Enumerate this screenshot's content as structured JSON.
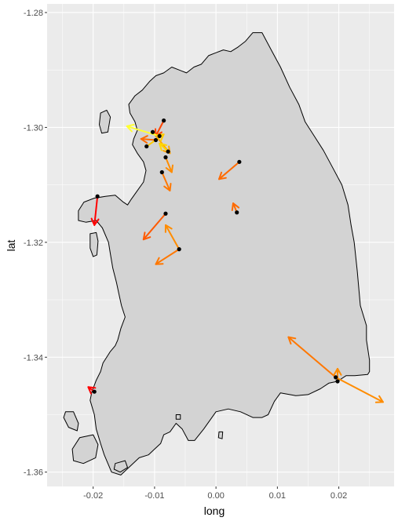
{
  "chart_data": {
    "type": "scatter",
    "xlabel": "long",
    "ylabel": "lat",
    "xlim": [
      -0.0275,
      0.029
    ],
    "ylim": [
      -1.3625,
      -1.2785
    ],
    "x_ticks": [
      {
        "value": -0.02,
        "label": "-0.02"
      },
      {
        "value": -0.01,
        "label": "-0.01"
      },
      {
        "value": 0.0,
        "label": "0.00"
      },
      {
        "value": 0.01,
        "label": "0.01"
      },
      {
        "value": 0.02,
        "label": "0.02"
      }
    ],
    "y_ticks": [
      {
        "value": -1.28,
        "label": "-1.28"
      },
      {
        "value": -1.3,
        "label": "-1.30"
      },
      {
        "value": -1.32,
        "label": "-1.32"
      },
      {
        "value": -1.34,
        "label": "-1.34"
      },
      {
        "value": -1.36,
        "label": "-1.36"
      }
    ],
    "grid": true,
    "legend": "none",
    "colors": {
      "panel": "#ebebeb",
      "grid": "#ffffff",
      "land_fill": "#d3d3d3",
      "land_stroke": "#000000",
      "point": "#000000"
    },
    "outlines": [
      [
        [
          0.0075,
          -1.2835
        ],
        [
          0.009,
          -1.2865
        ],
        [
          0.0105,
          -1.2895
        ],
        [
          0.012,
          -1.293
        ],
        [
          0.0135,
          -1.296
        ],
        [
          0.0145,
          -1.299
        ],
        [
          0.016,
          -1.3015
        ],
        [
          0.0175,
          -1.304
        ],
        [
          0.019,
          -1.307
        ],
        [
          0.0205,
          -1.31
        ],
        [
          0.0215,
          -1.3135
        ],
        [
          0.022,
          -1.317
        ],
        [
          0.0225,
          -1.32
        ],
        [
          0.023,
          -1.325
        ],
        [
          0.0235,
          -1.331
        ],
        [
          0.0245,
          -1.3345
        ],
        [
          0.0245,
          -1.337
        ],
        [
          0.025,
          -1.3405
        ],
        [
          0.025,
          -1.3425
        ],
        [
          0.0247,
          -1.343
        ],
        [
          0.0226,
          -1.3432
        ],
        [
          0.0212,
          -1.3432
        ],
        [
          0.0198,
          -1.3442
        ],
        [
          0.0184,
          -1.3445
        ],
        [
          0.017,
          -1.3455
        ],
        [
          0.015,
          -1.3465
        ],
        [
          0.013,
          -1.3467
        ],
        [
          0.0105,
          -1.3462
        ],
        [
          0.0095,
          -1.3477
        ],
        [
          0.0085,
          -1.35
        ],
        [
          0.0075,
          -1.3505
        ],
        [
          0.006,
          -1.3505
        ],
        [
          0.004,
          -1.3495
        ],
        [
          0.002,
          -1.349
        ],
        [
          0.0,
          -1.3495
        ],
        [
          -0.001,
          -1.351
        ],
        [
          -0.002,
          -1.3525
        ],
        [
          -0.0035,
          -1.3545
        ],
        [
          -0.0045,
          -1.3545
        ],
        [
          -0.0055,
          -1.3525
        ],
        [
          -0.0065,
          -1.3515
        ],
        [
          -0.0075,
          -1.353
        ],
        [
          -0.0085,
          -1.3535
        ],
        [
          -0.009,
          -1.355
        ],
        [
          -0.01,
          -1.356
        ],
        [
          -0.011,
          -1.357
        ],
        [
          -0.0125,
          -1.3575
        ],
        [
          -0.014,
          -1.359
        ],
        [
          -0.0155,
          -1.3605
        ],
        [
          -0.017,
          -1.36
        ],
        [
          -0.0182,
          -1.357
        ],
        [
          -0.0188,
          -1.355
        ],
        [
          -0.0195,
          -1.3525
        ],
        [
          -0.0198,
          -1.35
        ],
        [
          -0.0205,
          -1.3475
        ],
        [
          -0.0202,
          -1.346
        ],
        [
          -0.0195,
          -1.344
        ],
        [
          -0.0188,
          -1.3425
        ],
        [
          -0.0184,
          -1.341
        ],
        [
          -0.0172,
          -1.339
        ],
        [
          -0.0164,
          -1.338
        ],
        [
          -0.016,
          -1.337
        ],
        [
          -0.0155,
          -1.335
        ],
        [
          -0.0148,
          -1.333
        ],
        [
          -0.0154,
          -1.331
        ],
        [
          -0.0158,
          -1.329
        ],
        [
          -0.0162,
          -1.327
        ],
        [
          -0.0168,
          -1.3245
        ],
        [
          -0.0172,
          -1.322
        ],
        [
          -0.0175,
          -1.32
        ],
        [
          -0.0185,
          -1.3175
        ],
        [
          -0.0195,
          -1.3162
        ],
        [
          -0.0212,
          -1.3165
        ],
        [
          -0.0224,
          -1.3162
        ],
        [
          -0.0224,
          -1.3145
        ],
        [
          -0.0215,
          -1.313
        ],
        [
          -0.0198,
          -1.3123
        ],
        [
          -0.018,
          -1.312
        ],
        [
          -0.0164,
          -1.3118
        ],
        [
          -0.0152,
          -1.3129
        ],
        [
          -0.0144,
          -1.3135
        ],
        [
          -0.0138,
          -1.3125
        ],
        [
          -0.0128,
          -1.311
        ],
        [
          -0.0118,
          -1.3095
        ],
        [
          -0.0114,
          -1.3075
        ],
        [
          -0.0118,
          -1.306
        ],
        [
          -0.0128,
          -1.3045
        ],
        [
          -0.0136,
          -1.303
        ],
        [
          -0.0134,
          -1.302
        ],
        [
          -0.0128,
          -1.3005
        ],
        [
          -0.0132,
          -1.299
        ],
        [
          -0.014,
          -1.2975
        ],
        [
          -0.0142,
          -1.296
        ],
        [
          -0.0132,
          -1.2945
        ],
        [
          -0.012,
          -1.2935
        ],
        [
          -0.0108,
          -1.292
        ],
        [
          -0.0098,
          -1.291
        ],
        [
          -0.0085,
          -1.2905
        ],
        [
          -0.0072,
          -1.2895
        ],
        [
          -0.006,
          -1.29
        ],
        [
          -0.0048,
          -1.2905
        ],
        [
          -0.0036,
          -1.2895
        ],
        [
          -0.0024,
          -1.289
        ],
        [
          -0.0012,
          -1.2875
        ],
        [
          0.0,
          -1.287
        ],
        [
          0.0012,
          -1.2865
        ],
        [
          0.0024,
          -1.2868
        ],
        [
          0.0036,
          -1.286
        ],
        [
          0.0048,
          -1.285
        ],
        [
          0.006,
          -1.2835
        ],
        [
          0.0075,
          -1.2835
        ]
      ],
      [
        [
          -0.0205,
          -1.3185
        ],
        [
          -0.0195,
          -1.3183
        ],
        [
          -0.0192,
          -1.3198
        ],
        [
          -0.0194,
          -1.3222
        ],
        [
          -0.02,
          -1.3225
        ],
        [
          -0.0205,
          -1.321
        ],
        [
          -0.0205,
          -1.3185
        ]
      ],
      [
        [
          -0.0188,
          -1.2975
        ],
        [
          -0.0178,
          -1.297
        ],
        [
          -0.0172,
          -1.2982
        ],
        [
          -0.0176,
          -1.3008
        ],
        [
          -0.0186,
          -1.301
        ],
        [
          -0.019,
          -1.2995
        ],
        [
          -0.0188,
          -1.2975
        ]
      ],
      [
        [
          -0.0245,
          -1.3495
        ],
        [
          -0.0232,
          -1.3495
        ],
        [
          -0.0224,
          -1.3515
        ],
        [
          -0.0226,
          -1.3528
        ],
        [
          -0.024,
          -1.3522
        ],
        [
          -0.0248,
          -1.3505
        ],
        [
          -0.0245,
          -1.3495
        ]
      ],
      [
        [
          -0.0222,
          -1.354
        ],
        [
          -0.02,
          -1.3535
        ],
        [
          -0.0192,
          -1.3552
        ],
        [
          -0.0196,
          -1.3575
        ],
        [
          -0.0216,
          -1.3585
        ],
        [
          -0.0232,
          -1.358
        ],
        [
          -0.0234,
          -1.356
        ],
        [
          -0.0222,
          -1.354
        ]
      ],
      [
        [
          -0.0164,
          -1.3585
        ],
        [
          -0.0148,
          -1.358
        ],
        [
          -0.0144,
          -1.3592
        ],
        [
          -0.0156,
          -1.36
        ],
        [
          -0.0166,
          -1.3595
        ],
        [
          -0.0164,
          -1.3585
        ]
      ],
      [
        [
          0.0005,
          -1.353
        ],
        [
          0.0011,
          -1.353
        ],
        [
          0.001,
          -1.3542
        ],
        [
          0.0004,
          -1.354
        ],
        [
          0.0005,
          -1.353
        ]
      ],
      [
        [
          -0.0065,
          -1.35
        ],
        [
          -0.0058,
          -1.35
        ],
        [
          -0.0058,
          -1.3508
        ],
        [
          -0.0065,
          -1.3508
        ],
        [
          -0.0065,
          -1.35
        ]
      ]
    ],
    "points": [
      {
        "x": -0.0085,
        "y": -1.2988
      },
      {
        "x": -0.0103,
        "y": -1.3008
      },
      {
        "x": -0.0092,
        "y": -1.3015
      },
      {
        "x": -0.0098,
        "y": -1.3022
      },
      {
        "x": -0.0113,
        "y": -1.3033
      },
      {
        "x": -0.0078,
        "y": -1.3042
      },
      {
        "x": -0.0082,
        "y": -1.3052
      },
      {
        "x": -0.0088,
        "y": -1.3078
      },
      {
        "x": 0.0038,
        "y": -1.306
      },
      {
        "x": -0.0193,
        "y": -1.312
      },
      {
        "x": -0.0082,
        "y": -1.315
      },
      {
        "x": 0.0034,
        "y": -1.3148
      },
      {
        "x": -0.006,
        "y": -1.3212
      },
      {
        "x": 0.0195,
        "y": -1.3435
      },
      {
        "x": 0.0198,
        "y": -1.3442
      },
      {
        "x": -0.0198,
        "y": -1.346
      }
    ],
    "arrows": [
      {
        "x": -0.0085,
        "y": -1.2988,
        "xend": -0.0098,
        "yend": -1.3015,
        "color": "#ff4500"
      },
      {
        "x": -0.0103,
        "y": -1.3008,
        "xend": -0.0075,
        "yend": -1.3045,
        "color": "#ffa500"
      },
      {
        "x": -0.0092,
        "y": -1.3015,
        "xend": -0.0145,
        "yend": -1.2998,
        "color": "#ffff33"
      },
      {
        "x": -0.0098,
        "y": -1.3022,
        "xend": -0.0122,
        "yend": -1.302,
        "color": "#ff6a00"
      },
      {
        "x": -0.0113,
        "y": -1.3033,
        "xend": -0.0085,
        "yend": -1.3012,
        "color": "#ffcc00"
      },
      {
        "x": -0.0078,
        "y": -1.3042,
        "xend": -0.0092,
        "yend": -1.3028,
        "color": "#ffd700"
      },
      {
        "x": -0.0082,
        "y": -1.3052,
        "xend": -0.0072,
        "yend": -1.3078,
        "color": "#ff8c00"
      },
      {
        "x": -0.0088,
        "y": -1.3078,
        "xend": -0.0075,
        "yend": -1.311,
        "color": "#ff7700"
      },
      {
        "x": 0.0038,
        "y": -1.306,
        "xend": 0.0005,
        "yend": -1.309,
        "color": "#ff6a00"
      },
      {
        "x": -0.0193,
        "y": -1.312,
        "xend": -0.0198,
        "yend": -1.317,
        "color": "#ff0000"
      },
      {
        "x": -0.0082,
        "y": -1.315,
        "xend": -0.0118,
        "yend": -1.3195,
        "color": "#ff5a00"
      },
      {
        "x": 0.0034,
        "y": -1.3148,
        "xend": 0.0028,
        "yend": -1.3132,
        "color": "#ff6a00"
      },
      {
        "x": -0.006,
        "y": -1.3212,
        "xend": -0.0082,
        "yend": -1.317,
        "color": "#ff8c00"
      },
      {
        "x": -0.006,
        "y": -1.3212,
        "xend": -0.0098,
        "yend": -1.3238,
        "color": "#ff7700"
      },
      {
        "x": 0.0195,
        "y": -1.3435,
        "xend": 0.0118,
        "yend": -1.3365,
        "color": "#ff7700"
      },
      {
        "x": 0.0195,
        "y": -1.3435,
        "xend": 0.0272,
        "yend": -1.3478,
        "color": "#ff8c00"
      },
      {
        "x": 0.0198,
        "y": -1.3442,
        "xend": 0.0198,
        "yend": -1.342,
        "color": "#ff8c00"
      },
      {
        "x": -0.0198,
        "y": -1.346,
        "xend": -0.0208,
        "yend": -1.3452,
        "color": "#ff0000"
      }
    ]
  }
}
